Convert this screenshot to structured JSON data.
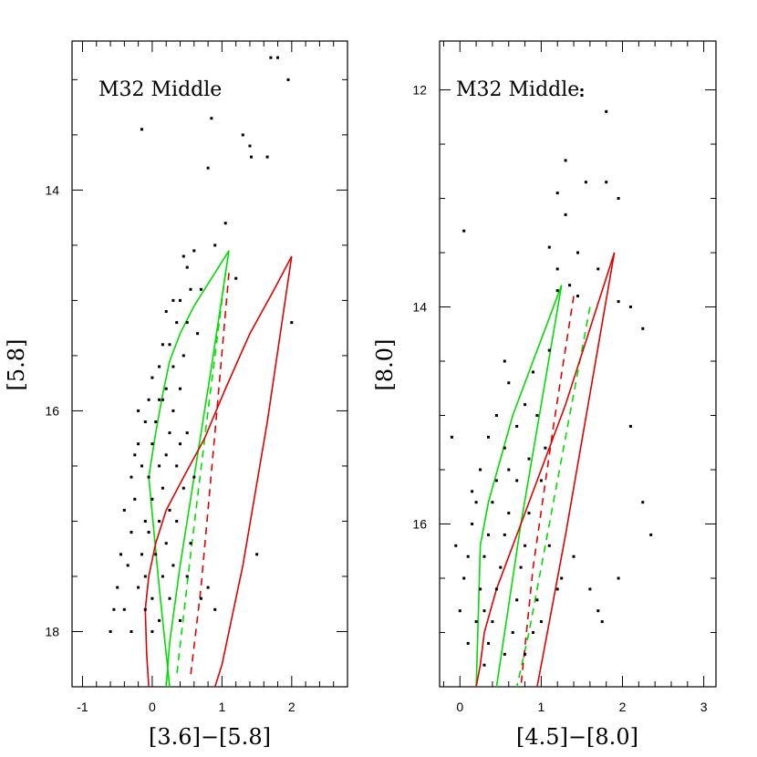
{
  "chart_data": [
    {
      "type": "scatter",
      "title": "M32 Middle",
      "xlabel": "[3.6]−[5.8]",
      "ylabel": "[5.8]",
      "xlim": [
        -1.15,
        2.8
      ],
      "ylim": [
        18.5,
        12.65
      ],
      "y_inverted": true,
      "xticks": [
        -1,
        0,
        1,
        2
      ],
      "yticks": [
        14,
        16,
        18
      ],
      "points": [
        [
          1.7,
          12.8
        ],
        [
          1.8,
          12.8
        ],
        [
          1.95,
          13.0
        ],
        [
          -0.15,
          13.45
        ],
        [
          0.85,
          13.35
        ],
        [
          1.3,
          13.5
        ],
        [
          1.4,
          13.6
        ],
        [
          1.42,
          13.7
        ],
        [
          1.65,
          13.7
        ],
        [
          0.8,
          13.8
        ],
        [
          1.05,
          14.3
        ],
        [
          0.9,
          14.5
        ],
        [
          0.6,
          14.55
        ],
        [
          1.2,
          14.8
        ],
        [
          0.5,
          14.7
        ],
        [
          0.45,
          14.6
        ],
        [
          0.55,
          14.9
        ],
        [
          0.7,
          14.9
        ],
        [
          0.3,
          15.0
        ],
        [
          0.4,
          15.0
        ],
        [
          0.2,
          15.1
        ],
        [
          0.35,
          15.2
        ],
        [
          0.5,
          15.2
        ],
        [
          0.65,
          15.3
        ],
        [
          0.15,
          15.4
        ],
        [
          0.25,
          15.4
        ],
        [
          0.45,
          15.5
        ],
        [
          0.1,
          15.6
        ],
        [
          0.3,
          15.6
        ],
        [
          0.0,
          15.7
        ],
        [
          0.2,
          15.8
        ],
        [
          0.4,
          15.8
        ],
        [
          -0.05,
          15.9
        ],
        [
          0.1,
          15.9
        ],
        [
          0.3,
          16.0
        ],
        [
          -0.1,
          16.1
        ],
        [
          0.05,
          16.1
        ],
        [
          0.25,
          16.2
        ],
        [
          0.5,
          16.2
        ],
        [
          -0.2,
          16.3
        ],
        [
          0.0,
          16.3
        ],
        [
          0.2,
          16.4
        ],
        [
          -0.15,
          16.5
        ],
        [
          0.1,
          16.5
        ],
        [
          0.35,
          16.5
        ],
        [
          -0.3,
          16.6
        ],
        [
          -0.05,
          16.6
        ],
        [
          0.15,
          16.7
        ],
        [
          0.45,
          16.7
        ],
        [
          -0.25,
          16.8
        ],
        [
          0.0,
          16.8
        ],
        [
          0.25,
          16.9
        ],
        [
          -0.4,
          16.9
        ],
        [
          -0.1,
          17.0
        ],
        [
          0.1,
          17.0
        ],
        [
          0.35,
          17.0
        ],
        [
          -0.3,
          17.1
        ],
        [
          -0.05,
          17.1
        ],
        [
          0.2,
          17.2
        ],
        [
          0.55,
          17.2
        ],
        [
          -0.45,
          17.3
        ],
        [
          -0.15,
          17.3
        ],
        [
          0.05,
          17.3
        ],
        [
          0.3,
          17.4
        ],
        [
          -0.35,
          17.4
        ],
        [
          -0.1,
          17.5
        ],
        [
          0.15,
          17.5
        ],
        [
          0.5,
          17.5
        ],
        [
          -0.5,
          17.6
        ],
        [
          -0.2,
          17.6
        ],
        [
          0.0,
          17.7
        ],
        [
          0.25,
          17.7
        ],
        [
          0.7,
          17.7
        ],
        [
          -0.4,
          17.8
        ],
        [
          -0.1,
          17.8
        ],
        [
          0.1,
          17.9
        ],
        [
          0.4,
          17.9
        ],
        [
          -0.6,
          18.0
        ],
        [
          -0.3,
          18.0
        ],
        [
          0.0,
          18.0
        ],
        [
          1.5,
          17.3
        ],
        [
          2.0,
          15.2
        ],
        [
          -0.55,
          17.8
        ],
        [
          0.8,
          17.6
        ],
        [
          0.9,
          17.8
        ],
        [
          -0.2,
          16.0
        ],
        [
          0.15,
          15.9
        ],
        [
          -0.25,
          16.4
        ],
        [
          0.6,
          16.6
        ],
        [
          0.4,
          16.3
        ]
      ],
      "tracks": [
        {
          "color": "#00dd00",
          "style": "solid",
          "x": [
            -0.05,
            0.05,
            0.15,
            0.25,
            0.4,
            0.6,
            0.85,
            1.1
          ],
          "y": [
            16.6,
            16.2,
            15.85,
            15.55,
            15.3,
            15.05,
            14.8,
            14.55
          ]
        },
        {
          "color": "#00dd00",
          "style": "solid",
          "x": [
            1.1,
            0.85,
            0.6,
            0.4,
            0.25,
            0.2
          ],
          "y": [
            14.55,
            15.6,
            16.6,
            17.4,
            18.1,
            18.5
          ]
        },
        {
          "color": "#00dd00",
          "style": "solid",
          "x": [
            -0.05,
            0.1,
            0.25
          ],
          "y": [
            16.6,
            17.6,
            18.5
          ]
        },
        {
          "color": "#00dd00",
          "style": "dashed",
          "x": [
            1.05,
            0.8,
            0.55,
            0.35
          ],
          "y": [
            14.75,
            16.0,
            17.3,
            18.4
          ]
        },
        {
          "color": "#e00000",
          "style": "solid",
          "x": [
            -0.1,
            -0.05,
            0.05,
            0.2,
            0.45,
            0.75,
            1.05,
            1.4,
            1.75,
            2.0
          ],
          "y": [
            17.8,
            17.5,
            17.2,
            16.9,
            16.6,
            16.25,
            15.8,
            15.3,
            14.9,
            14.6
          ]
        },
        {
          "color": "#e00000",
          "style": "solid",
          "x": [
            2.0,
            1.65,
            1.3,
            1.0,
            0.9
          ],
          "y": [
            14.6,
            16.1,
            17.4,
            18.3,
            18.5
          ]
        },
        {
          "color": "#e00000",
          "style": "solid",
          "x": [
            -0.1,
            -0.08,
            -0.05
          ],
          "y": [
            17.8,
            18.2,
            18.5
          ]
        },
        {
          "color": "#e00000",
          "style": "dashed",
          "x": [
            1.1,
            0.9,
            0.7,
            0.55
          ],
          "y": [
            14.75,
            16.2,
            17.6,
            18.4
          ]
        }
      ]
    },
    {
      "type": "scatter",
      "title": "M32 Middle",
      "xlabel": "[4.5]−[8.0]",
      "ylabel": "[8.0]",
      "xlim": [
        -0.25,
        3.15
      ],
      "ylim": [
        17.5,
        11.55
      ],
      "y_inverted": true,
      "xticks": [
        0,
        1,
        2,
        3
      ],
      "yticks": [
        12,
        14,
        16
      ],
      "points": [
        [
          1.8,
          12.2
        ],
        [
          1.5,
          12.05
        ],
        [
          1.5,
          12.0
        ],
        [
          1.3,
          12.65
        ],
        [
          1.55,
          12.85
        ],
        [
          1.2,
          12.95
        ],
        [
          1.95,
          13.0
        ],
        [
          1.3,
          13.15
        ],
        [
          1.8,
          12.85
        ],
        [
          1.45,
          13.5
        ],
        [
          1.1,
          13.45
        ],
        [
          0.05,
          13.3
        ],
        [
          1.2,
          13.65
        ],
        [
          1.7,
          13.65
        ],
        [
          1.2,
          13.85
        ],
        [
          1.35,
          13.8
        ],
        [
          1.45,
          13.9
        ],
        [
          1.95,
          13.95
        ],
        [
          2.1,
          14.0
        ],
        [
          2.25,
          14.2
        ],
        [
          0.55,
          14.5
        ],
        [
          0.6,
          14.7
        ],
        [
          0.9,
          14.6
        ],
        [
          1.1,
          14.4
        ],
        [
          0.8,
          14.9
        ],
        [
          0.45,
          15.0
        ],
        [
          0.7,
          15.1
        ],
        [
          0.95,
          15.0
        ],
        [
          0.35,
          15.2
        ],
        [
          0.55,
          15.3
        ],
        [
          0.85,
          15.4
        ],
        [
          0.25,
          15.5
        ],
        [
          0.45,
          15.6
        ],
        [
          0.7,
          15.6
        ],
        [
          1.0,
          15.6
        ],
        [
          0.2,
          15.8
        ],
        [
          0.4,
          15.8
        ],
        [
          0.6,
          15.9
        ],
        [
          0.85,
          15.9
        ],
        [
          0.15,
          16.0
        ],
        [
          0.35,
          16.1
        ],
        [
          0.55,
          16.1
        ],
        [
          0.8,
          16.2
        ],
        [
          1.1,
          16.2
        ],
        [
          0.1,
          16.3
        ],
        [
          0.3,
          16.3
        ],
        [
          0.5,
          16.4
        ],
        [
          0.75,
          16.4
        ],
        [
          0.05,
          16.5
        ],
        [
          0.25,
          16.6
        ],
        [
          0.45,
          16.6
        ],
        [
          0.7,
          16.7
        ],
        [
          0.95,
          16.7
        ],
        [
          0.0,
          16.8
        ],
        [
          0.2,
          16.9
        ],
        [
          0.4,
          16.9
        ],
        [
          0.65,
          17.0
        ],
        [
          0.9,
          17.0
        ],
        [
          0.1,
          17.1
        ],
        [
          0.35,
          17.1
        ],
        [
          0.55,
          17.2
        ],
        [
          0.8,
          17.2
        ],
        [
          1.0,
          16.9
        ],
        [
          1.2,
          16.6
        ],
        [
          -0.05,
          16.2
        ],
        [
          -0.1,
          15.2
        ],
        [
          0.3,
          17.3
        ],
        [
          2.1,
          15.1
        ],
        [
          2.25,
          15.8
        ],
        [
          2.35,
          16.1
        ],
        [
          1.95,
          16.5
        ],
        [
          1.7,
          16.8
        ],
        [
          1.75,
          16.9
        ],
        [
          1.6,
          16.6
        ],
        [
          1.25,
          16.5
        ],
        [
          1.4,
          16.3
        ],
        [
          0.15,
          15.7
        ],
        [
          0.6,
          15.5
        ],
        [
          1.05,
          15.3
        ],
        [
          0.3,
          16.8
        ]
      ],
      "tracks": [
        {
          "color": "#00dd00",
          "style": "solid",
          "x": [
            0.25,
            0.35,
            0.5,
            0.65,
            0.85,
            1.05,
            1.25
          ],
          "y": [
            16.2,
            15.8,
            15.4,
            15.0,
            14.6,
            14.2,
            13.8
          ]
        },
        {
          "color": "#00dd00",
          "style": "solid",
          "x": [
            1.25,
            1.0,
            0.75,
            0.55,
            0.45
          ],
          "y": [
            13.8,
            14.9,
            16.0,
            17.0,
            17.5
          ]
        },
        {
          "color": "#00dd00",
          "style": "solid",
          "x": [
            0.25,
            0.22,
            0.2
          ],
          "y": [
            16.2,
            17.0,
            17.5
          ]
        },
        {
          "color": "#00dd00",
          "style": "dashed",
          "x": [
            1.6,
            1.35,
            1.1,
            0.85,
            0.7
          ],
          "y": [
            14.0,
            15.0,
            16.0,
            17.0,
            17.5
          ]
        },
        {
          "color": "#e00000",
          "style": "solid",
          "x": [
            0.3,
            0.45,
            0.7,
            1.0,
            1.3,
            1.6,
            1.9
          ],
          "y": [
            17.0,
            16.6,
            16.1,
            15.5,
            14.9,
            14.2,
            13.5
          ]
        },
        {
          "color": "#e00000",
          "style": "solid",
          "x": [
            1.9,
            1.6,
            1.3,
            1.05,
            0.95
          ],
          "y": [
            13.5,
            14.8,
            16.1,
            17.1,
            17.5
          ]
        },
        {
          "color": "#e00000",
          "style": "solid",
          "x": [
            0.3,
            0.25,
            0.2
          ],
          "y": [
            17.0,
            17.3,
            17.5
          ]
        },
        {
          "color": "#e00000",
          "style": "dashed",
          "x": [
            1.4,
            1.15,
            0.9,
            0.75
          ],
          "y": [
            13.9,
            15.1,
            16.4,
            17.5
          ]
        }
      ]
    }
  ]
}
